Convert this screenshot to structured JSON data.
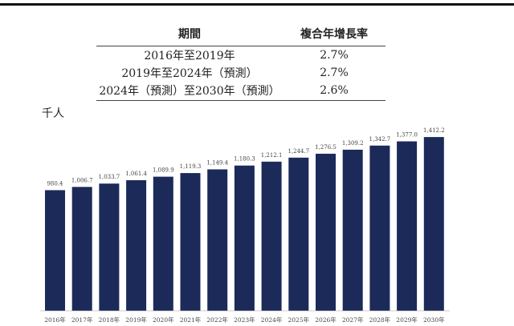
{
  "table": {
    "headers": [
      "期間",
      "複合年增長率"
    ],
    "rows": [
      [
        "2016年至2019年",
        "2.7%"
      ],
      [
        "2019年至2024年（預測）",
        "2.7%"
      ],
      [
        "2024年（預測）至2030年（預測）",
        "2.6%"
      ]
    ]
  },
  "chart_data": {
    "type": "bar",
    "ylabel": "千人",
    "categories": [
      "2016年",
      "2017年",
      "2018年",
      "2019年",
      "2020年",
      "2021年",
      "2022年",
      "2023年",
      "2024年",
      "2025年",
      "2026年",
      "2027年",
      "2028年",
      "2029年",
      "2030年"
    ],
    "values": [
      980.4,
      1006.7,
      1033.7,
      1061.4,
      1089.9,
      1119.3,
      1149.4,
      1180.3,
      1212.1,
      1244.7,
      1276.5,
      1309.2,
      1342.7,
      1377.0,
      1412.2
    ],
    "data_labels": [
      "980.4",
      "1,006.7",
      "1,033.7",
      "1,061.4",
      "1,089.9",
      "1,119.3",
      "1,149.4",
      "1,180.3",
      "1,212.1",
      "1,244.7",
      "1,276.5",
      "1,309.2",
      "1,342.7",
      "1,377.0",
      "1,412.2"
    ],
    "color": "#1c2a5a",
    "grid": false
  }
}
